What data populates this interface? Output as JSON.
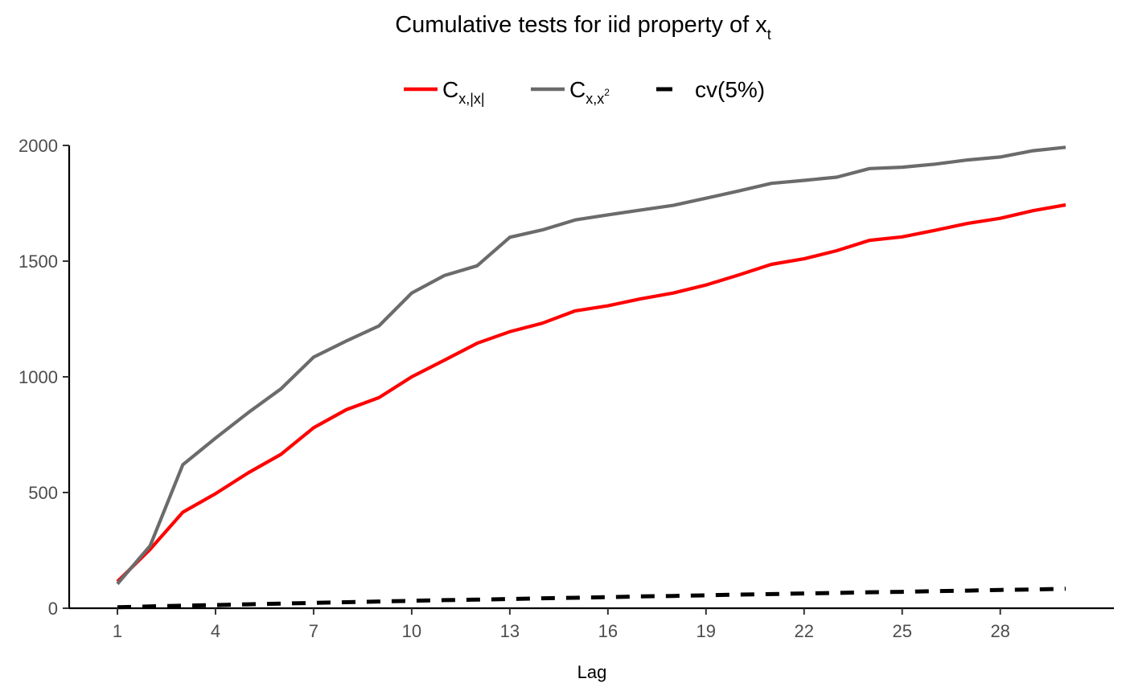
{
  "chart_data": {
    "type": "line",
    "title": {
      "main": "Cumulative tests for iid property of x",
      "subscript": "t"
    },
    "xlabel": "Lag",
    "ylabel": "",
    "x": [
      1,
      2,
      3,
      4,
      5,
      6,
      7,
      8,
      9,
      10,
      11,
      12,
      13,
      14,
      15,
      16,
      17,
      18,
      19,
      20,
      21,
      22,
      23,
      24,
      25,
      26,
      27,
      28,
      29,
      30
    ],
    "xlim": [
      1,
      30
    ],
    "ylim": [
      0,
      2000
    ],
    "x_ticks": [
      "1",
      "4",
      "7",
      "10",
      "13",
      "16",
      "19",
      "22",
      "25",
      "28"
    ],
    "y_ticks": [
      "0",
      "500",
      "1000",
      "1500",
      "2000"
    ],
    "grid": false,
    "legend_position": "top",
    "series": [
      {
        "name": "C_{x,|x|}",
        "legend": {
          "main": "C",
          "sub": "x,|x|",
          "sup": ""
        },
        "color": "#ff0000",
        "style": "solid",
        "values": [
          115,
          255,
          415,
          495,
          585,
          665,
          780,
          858,
          910,
          1000,
          1072,
          1145,
          1195,
          1232,
          1285,
          1307,
          1337,
          1362,
          1397,
          1440,
          1486,
          1510,
          1545,
          1590,
          1605,
          1633,
          1663,
          1685,
          1718,
          1743
        ]
      },
      {
        "name": "C_{x,x^2}",
        "legend": {
          "main": "C",
          "sub": "x,x",
          "sup": "2"
        },
        "color": "#6b6b6b",
        "style": "solid",
        "values": [
          105,
          270,
          620,
          735,
          845,
          948,
          1085,
          1155,
          1220,
          1362,
          1438,
          1480,
          1603,
          1635,
          1678,
          1700,
          1721,
          1741,
          1772,
          1803,
          1836,
          1849,
          1863,
          1900,
          1906,
          1919,
          1937,
          1950,
          1977,
          1992
        ]
      },
      {
        "name": "cv(5%)",
        "legend": {
          "main": "cv(5%)",
          "sub": "",
          "sup": ""
        },
        "color": "#000000",
        "style": "dashed",
        "values": [
          4,
          8,
          11,
          14,
          17,
          20,
          23,
          26,
          29,
          32,
          35,
          37,
          40,
          43,
          45,
          48,
          51,
          53,
          56,
          59,
          61,
          64,
          66,
          69,
          71,
          74,
          76,
          79,
          81,
          84
        ]
      }
    ]
  }
}
